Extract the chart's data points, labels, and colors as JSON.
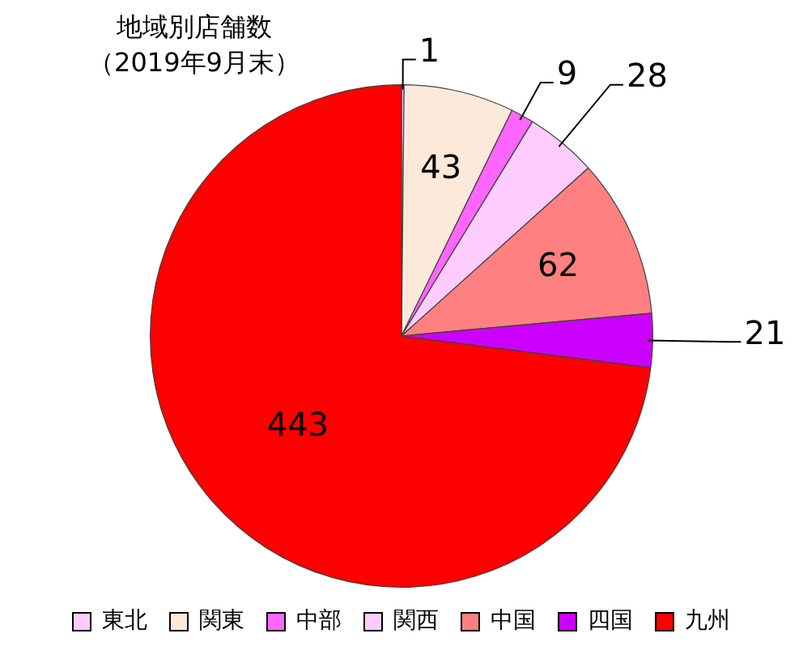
{
  "chart_data": {
    "type": "pie",
    "title": "地域別店舗数",
    "subtitle": "（2019年9月末）",
    "categories": [
      "東北",
      "関東",
      "中部",
      "関西",
      "中国",
      "四国",
      "九州"
    ],
    "values": [
      1,
      43,
      9,
      28,
      62,
      21,
      443
    ],
    "colors": [
      "#ffccff",
      "#fde9d9",
      "#ff66ff",
      "#ffccff",
      "#ff8080",
      "#cc00ff",
      "#ff0000"
    ],
    "data_labels": true,
    "legend": "bottom"
  }
}
